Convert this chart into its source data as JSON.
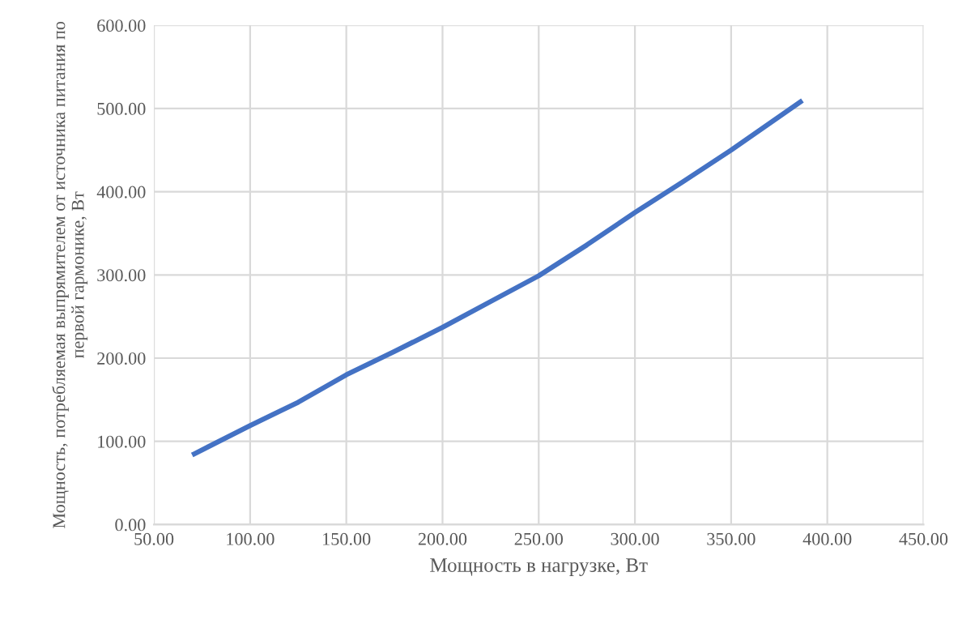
{
  "chart_data": {
    "type": "line",
    "xlabel": "Мощность в нагрузке, Вт",
    "ylabel": "Мощность, потребляемая выпрямителем от источника питания по первой гармонике, Вт",
    "x": [
      71,
      100,
      125,
      150,
      175,
      200,
      225,
      250,
      275,
      300,
      325,
      350,
      386
    ],
    "series": [
      {
        "color": "#4472c4",
        "values": [
          85,
          119,
          147,
          180,
          208,
          237,
          268,
          299,
          336,
          375,
          412,
          450,
          508
        ]
      }
    ],
    "xlim": [
      50,
      450
    ],
    "ylim": [
      0,
      600
    ],
    "xticks": [
      {
        "value": 50,
        "label": "50.00"
      },
      {
        "value": 100,
        "label": "100.00"
      },
      {
        "value": 150,
        "label": "150.00"
      },
      {
        "value": 200,
        "label": "200.00"
      },
      {
        "value": 250,
        "label": "250.00"
      },
      {
        "value": 300,
        "label": "300.00"
      },
      {
        "value": 350,
        "label": "350.00"
      },
      {
        "value": 400,
        "label": "400.00"
      },
      {
        "value": 450,
        "label": "450.00"
      }
    ],
    "yticks": [
      {
        "value": 0,
        "label": "0.00"
      },
      {
        "value": 100,
        "label": "100.00"
      },
      {
        "value": 200,
        "label": "200.00"
      },
      {
        "value": 300,
        "label": "300.00"
      },
      {
        "value": 400,
        "label": "400.00"
      },
      {
        "value": 500,
        "label": "500.00"
      },
      {
        "value": 600,
        "label": "600.00"
      }
    ],
    "grid": true,
    "marker": "none",
    "line_style": "solid"
  }
}
